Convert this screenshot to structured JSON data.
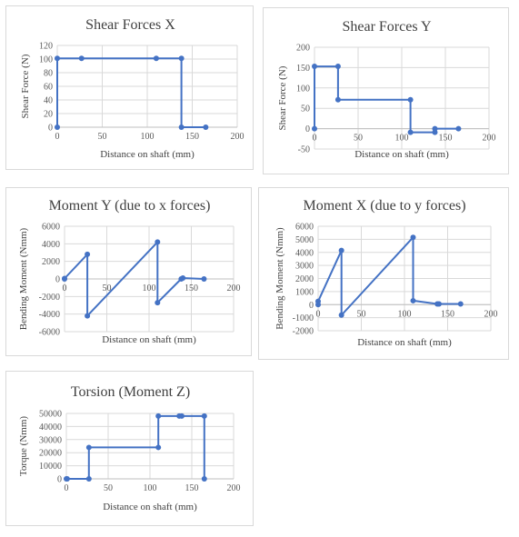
{
  "chart_data": [
    {
      "type": "line",
      "title": "Shear Forces X",
      "xlabel": "Distance on shaft (mm)",
      "ylabel": "Shear Force (N)",
      "xlim": [
        0,
        200
      ],
      "ylim": [
        0,
        120
      ],
      "x_ticks": [
        0,
        50,
        100,
        150,
        200
      ],
      "y_ticks": [
        0,
        20,
        40,
        60,
        80,
        100,
        120
      ],
      "grid": true,
      "color": "#4472c4",
      "series": [
        {
          "points": [
            [
              0,
              0
            ],
            [
              0,
              101
            ],
            [
              27,
              101
            ],
            [
              110,
              101
            ],
            [
              138,
              101
            ],
            [
              138,
              0
            ],
            [
              165,
              0
            ]
          ]
        }
      ]
    },
    {
      "type": "line",
      "title": "Shear Forces Y",
      "xlabel": "Distance on shaft (mm)",
      "ylabel": "Shear Force (N)",
      "xlim": [
        0,
        200
      ],
      "ylim": [
        -50,
        200
      ],
      "x_ticks": [
        0,
        50,
        100,
        150,
        200
      ],
      "y_ticks": [
        -50,
        0,
        50,
        100,
        150,
        200
      ],
      "grid": true,
      "color": "#4472c4",
      "series": [
        {
          "points": [
            [
              0,
              0
            ],
            [
              0,
              153
            ],
            [
              27,
              153
            ],
            [
              27,
              71
            ],
            [
              110,
              71
            ],
            [
              110,
              -9
            ],
            [
              138,
              -9
            ],
            [
              138,
              0
            ],
            [
              165,
              0
            ]
          ]
        }
      ]
    },
    {
      "type": "line",
      "title": "Moment Y (due to x forces)",
      "xlabel": "Distance on shaft (mm)",
      "ylabel": "Bending Moment (Nmm)",
      "xlim": [
        0,
        200
      ],
      "ylim": [
        -6000,
        6000
      ],
      "x_ticks": [
        0,
        50,
        100,
        150,
        200
      ],
      "y_ticks": [
        -6000,
        -4000,
        -2000,
        0,
        2000,
        4000,
        6000
      ],
      "grid": true,
      "color": "#4472c4",
      "series": [
        {
          "points": [
            [
              0,
              0
            ],
            [
              0,
              50
            ],
            [
              27,
              2800
            ],
            [
              27,
              -4200
            ],
            [
              110,
              4200
            ],
            [
              110,
              -2700
            ],
            [
              138,
              0
            ],
            [
              140,
              100
            ],
            [
              165,
              0
            ]
          ]
        }
      ]
    },
    {
      "type": "line",
      "title": "Moment X (due to y forces)",
      "xlabel": "Distance on shaft (mm)",
      "ylabel": "Bending Moment (Nmm)",
      "xlim": [
        0,
        200
      ],
      "ylim": [
        -2000,
        6000
      ],
      "x_ticks": [
        0,
        50,
        100,
        150,
        200
      ],
      "y_ticks": [
        -2000,
        -1000,
        0,
        1000,
        2000,
        3000,
        4000,
        5000,
        6000
      ],
      "grid": true,
      "color": "#4472c4",
      "series": [
        {
          "points": [
            [
              0,
              0
            ],
            [
              0,
              250
            ],
            [
              27,
              4150
            ],
            [
              27,
              -800
            ],
            [
              110,
              5150
            ],
            [
              110,
              300
            ],
            [
              138,
              50
            ],
            [
              140,
              50
            ],
            [
              165,
              50
            ]
          ]
        }
      ]
    },
    {
      "type": "line",
      "title": "Torsion (Moment Z)",
      "xlabel": "Distance on shaft (mm)",
      "ylabel": "Torque (Nmm)",
      "xlim": [
        0,
        200
      ],
      "ylim": [
        0,
        50000
      ],
      "x_ticks": [
        0,
        50,
        100,
        150,
        200
      ],
      "y_ticks": [
        0,
        10000,
        20000,
        30000,
        40000,
        50000
      ],
      "grid": true,
      "color": "#4472c4",
      "series": [
        {
          "points": [
            [
              0,
              0
            ],
            [
              1,
              0
            ],
            [
              27,
              0
            ],
            [
              27,
              24000
            ],
            [
              110,
              24000
            ],
            [
              110,
              48000
            ],
            [
              135,
              48000
            ],
            [
              138,
              48000
            ],
            [
              165,
              48000
            ],
            [
              165,
              0
            ]
          ]
        }
      ]
    }
  ]
}
